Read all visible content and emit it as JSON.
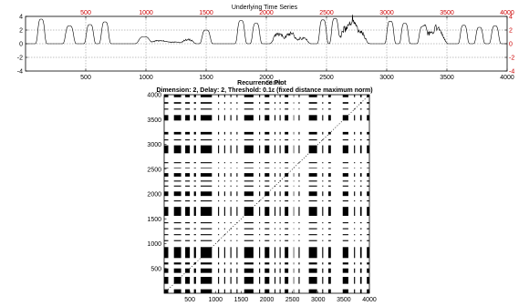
{
  "colors": {
    "background": "#ffffff",
    "axis": "#000000",
    "top_axis_tick_labels": "#cc0000",
    "right_axis_tick_labels": "#cc0000",
    "grid": "#808080",
    "signal": "#000000",
    "recurrence": "#000000"
  },
  "chart_data": [
    {
      "type": "line",
      "title": "Underlying Time Series",
      "xlim": [
        0,
        4000
      ],
      "ylim": [
        -4,
        4
      ],
      "grid": true,
      "xticks_bottom": [
        "500",
        "1000",
        "1500",
        "2000",
        "2500",
        "3000",
        "3500",
        "4000"
      ],
      "xticks_top": [
        "500",
        "1000",
        "1500",
        "2000",
        "2500",
        "3000",
        "3500",
        "4000"
      ],
      "yticks_left": [
        "4",
        "2",
        "0",
        "-2",
        "-4"
      ],
      "yticks_right": [
        "4",
        "2",
        "0",
        "-2",
        "-4"
      ],
      "baseline": 0,
      "peaks": [
        {
          "x": 130,
          "height": 3.6,
          "width": 38,
          "shape": "peak"
        },
        {
          "x": 365,
          "height": 2.6,
          "width": 45,
          "shape": "peak"
        },
        {
          "x": 535,
          "height": 2.8,
          "width": 40,
          "shape": "peak"
        },
        {
          "x": 660,
          "height": 3.2,
          "width": 40,
          "shape": "peak"
        },
        {
          "x": 985,
          "height": 1.0,
          "width": 60,
          "shape": "peak"
        },
        {
          "x": 1110,
          "height": 0.5,
          "width": 70,
          "shape": "noisy"
        },
        {
          "x": 1230,
          "height": 0.3,
          "width": 70,
          "shape": "noisy"
        },
        {
          "x": 1350,
          "height": 0.7,
          "width": 50,
          "shape": "noisy"
        },
        {
          "x": 1500,
          "height": 2.0,
          "width": 45,
          "shape": "peak"
        },
        {
          "x": 1790,
          "height": 3.4,
          "width": 40,
          "shape": "peak"
        },
        {
          "x": 1915,
          "height": 3.0,
          "width": 40,
          "shape": "peak"
        },
        {
          "x": 2100,
          "height": 1.6,
          "width": 50,
          "shape": "noisy"
        },
        {
          "x": 2200,
          "height": 1.8,
          "width": 50,
          "shape": "noisy"
        },
        {
          "x": 2300,
          "height": 1.0,
          "width": 50,
          "shape": "noisy"
        },
        {
          "x": 2470,
          "height": 3.5,
          "width": 38,
          "shape": "peak"
        },
        {
          "x": 2570,
          "height": 3.7,
          "width": 38,
          "shape": "peak"
        },
        {
          "x": 2680,
          "height": 2.8,
          "width": 70,
          "shape": "noisy"
        },
        {
          "x": 2760,
          "height": 2.2,
          "width": 70,
          "shape": "noisy"
        },
        {
          "x": 3030,
          "height": 3.3,
          "width": 38,
          "shape": "peak"
        },
        {
          "x": 3150,
          "height": 3.0,
          "width": 38,
          "shape": "peak"
        },
        {
          "x": 3300,
          "height": 2.5,
          "width": 40,
          "shape": "peak"
        },
        {
          "x": 3390,
          "height": 2.0,
          "width": 70,
          "shape": "noisy"
        },
        {
          "x": 3440,
          "height": 1.2,
          "width": 50,
          "shape": "noisy"
        },
        {
          "x": 3640,
          "height": 2.7,
          "width": 38,
          "shape": "peak"
        },
        {
          "x": 3770,
          "height": 2.4,
          "width": 38,
          "shape": "peak"
        },
        {
          "x": 3900,
          "height": 2.6,
          "width": 40,
          "shape": "peak"
        }
      ]
    },
    {
      "type": "heatmap",
      "title": "Recurrence Plot",
      "title_overlay": "State",
      "subtitle": "Dimension: 2,  Delay: 2,  Threshold: 0.1ε  (fixed distance maximum norm)",
      "xlim": [
        0,
        4000
      ],
      "ylim": [
        0,
        4000
      ],
      "xticks": [
        "500",
        "1000",
        "1500",
        "2000",
        "2500",
        "3000",
        "3500",
        "4000"
      ],
      "yticks": [
        "500",
        "1000",
        "1500",
        "2000",
        "2500",
        "3000",
        "3500",
        "4000"
      ],
      "recurrent_intervals": [
        [
          0,
          80
        ],
        [
          190,
          330
        ],
        [
          410,
          500
        ],
        [
          580,
          620
        ],
        [
          710,
          930
        ],
        [
          1050,
          1070
        ],
        [
          1170,
          1190
        ],
        [
          1290,
          1310
        ],
        [
          1410,
          1430
        ],
        [
          1560,
          1740
        ],
        [
          1850,
          1870
        ],
        [
          1960,
          2050
        ],
        [
          2150,
          2170
        ],
        [
          2250,
          2270
        ],
        [
          2350,
          2420
        ],
        [
          2520,
          2530
        ],
        [
          2620,
          2640
        ],
        [
          2820,
          2980
        ],
        [
          3080,
          3100
        ],
        [
          3200,
          3250
        ],
        [
          3480,
          3590
        ],
        [
          3700,
          3720
        ],
        [
          3820,
          3850
        ],
        [
          3950,
          4000
        ]
      ]
    }
  ]
}
